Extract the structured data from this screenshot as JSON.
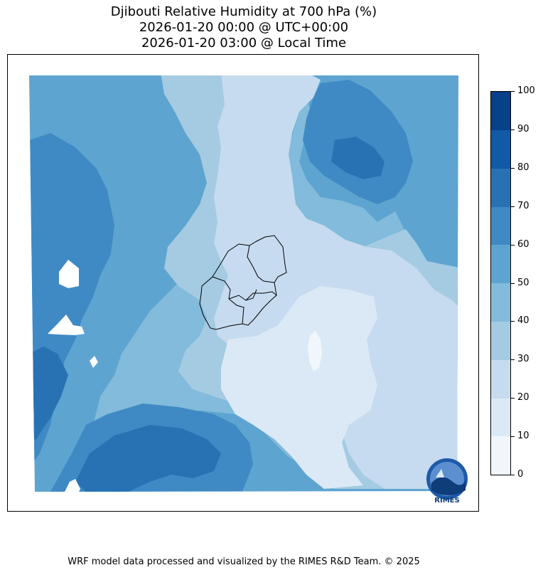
{
  "title": {
    "line1": "Djibouti Relative Humidity at 700 hPa (%)",
    "line2": "2026-01-20 00:00 @ UTC+00:00",
    "line3": "2026-01-20 03:00 @ Local Time"
  },
  "colorbar": {
    "ticks": [
      "0",
      "10",
      "20",
      "30",
      "40",
      "50",
      "60",
      "70",
      "80",
      "90",
      "100"
    ],
    "colors": [
      "#f0f6fc",
      "#dbe9f6",
      "#c6dbef",
      "#a4cbe2",
      "#82bbdb",
      "#5ea4d1",
      "#3f8ac4",
      "#2872b4",
      "#105aa6",
      "#08408a"
    ],
    "range": [
      0,
      100
    ],
    "unit": "%"
  },
  "logo": {
    "text": "RIMES"
  },
  "footer": {
    "credit": "WRF model data processed and visualized by the RIMES R&D Team. © 2025"
  }
}
